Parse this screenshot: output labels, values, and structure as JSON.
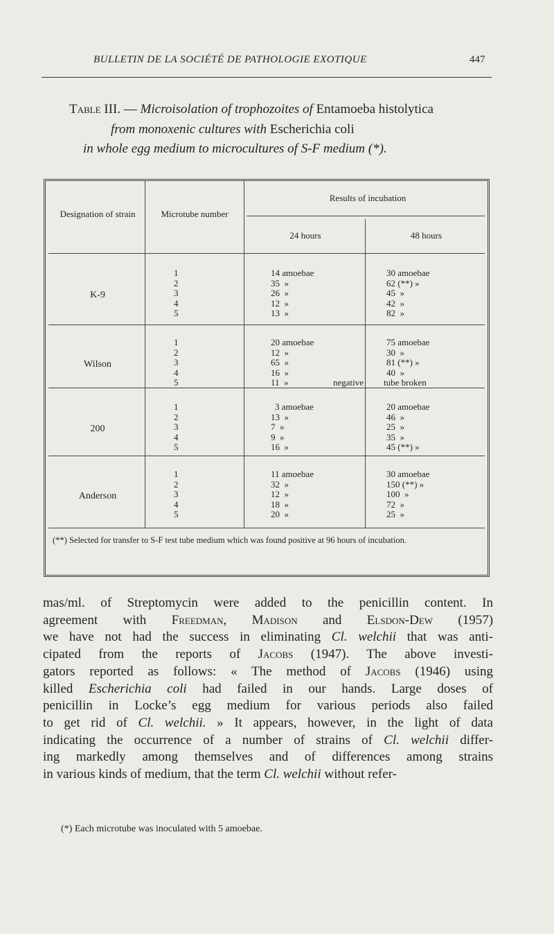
{
  "header": {
    "running_title": "BULLETIN DE LA SOCIÉTÉ DE PATHOLOGIE EXOTIQUE",
    "page_number": "447"
  },
  "table_title": [
    [
      {
        "t": "Table III.",
        "s": "sc"
      },
      {
        "t": " — ",
        "s": ""
      },
      {
        "t": "Microisolation of trophozoites of ",
        "s": "i"
      },
      {
        "t": "Entamoeba histolytica",
        "s": ""
      }
    ],
    [
      {
        "t": "from monoxenic cultures with ",
        "s": "i"
      },
      {
        "t": "Escherichia coli",
        "s": ""
      }
    ],
    [
      {
        "t": "in whole egg medium to microcultures of S-F medium (*).",
        "s": "i"
      }
    ]
  ],
  "table": {
    "col_strain": "Designation of strain",
    "col_microtube": "Microtube number",
    "col_results": "Results of incubation",
    "col_24": "24 hours",
    "col_48": "48 hours",
    "groups": [
      {
        "strain": "K-9",
        "tubes": [
          "1",
          "2",
          "3",
          "4",
          "5"
        ],
        "h24": [
          "14 amoebae",
          "35  »",
          "26  »",
          "12  »",
          "13  »"
        ],
        "h48": [
          "30 amoebae",
          "62 (**) »",
          "45  »",
          "42  »",
          "82  »"
        ]
      },
      {
        "strain": "Wilson",
        "tubes": [
          "1",
          "2",
          "3",
          "4",
          "5"
        ],
        "h24": [
          "20 amoebae",
          "12  »",
          "65  »",
          "16  »",
          "11  »"
        ],
        "h48": [
          "75 amoebae",
          "30  »",
          "81 (**) »",
          "40  »",
          "tube broken"
        ],
        "note": "negative"
      },
      {
        "strain": "200",
        "tubes": [
          "1",
          "2",
          "3",
          "4",
          "5"
        ],
        "h24": [
          "3 amoebae",
          "13  »",
          "7  »",
          "9  »",
          "16  »"
        ],
        "h48": [
          "20 amoebae",
          "46  »",
          "25  »",
          "35  »",
          "45 (**) »"
        ]
      },
      {
        "strain": "Anderson",
        "tubes": [
          "1",
          "2",
          "3",
          "4",
          "5"
        ],
        "h24": [
          "11 amoebae",
          "32  »",
          "12  »",
          "18  »",
          "20  »"
        ],
        "h48": [
          "30 amoebae",
          "150 (**) »",
          "100  »",
          "72  »",
          "25  »"
        ]
      }
    ],
    "footnote": "(**) Selected for transfer to S-F test tube medium which was found positive at 96 hours of incubation."
  },
  "body_lines": [
    [
      {
        "t": "mas/ml. of Streptomycin were added to the penicillin content. In",
        "s": ""
      }
    ],
    [
      {
        "t": "agreement with ",
        "s": ""
      },
      {
        "t": "Freedman",
        "s": "sc"
      },
      {
        "t": ", ",
        "s": ""
      },
      {
        "t": "Madison",
        "s": "sc"
      },
      {
        "t": " and ",
        "s": ""
      },
      {
        "t": "Elsdon-Dew",
        "s": "sc"
      },
      {
        "t": " (1957)",
        "s": ""
      }
    ],
    [
      {
        "t": "we have not had the success in eliminating ",
        "s": ""
      },
      {
        "t": "Cl. welchii",
        "s": "i"
      },
      {
        "t": " that was anti-",
        "s": ""
      }
    ],
    [
      {
        "t": "cipated from the reports of ",
        "s": ""
      },
      {
        "t": "Jacobs",
        "s": "sc"
      },
      {
        "t": " (1947). The above investi-",
        "s": ""
      }
    ],
    [
      {
        "t": "gators reported as follows: « The method of ",
        "s": ""
      },
      {
        "t": "Jacobs",
        "s": "sc"
      },
      {
        "t": " (1946) using",
        "s": ""
      }
    ],
    [
      {
        "t": "killed ",
        "s": ""
      },
      {
        "t": "Escherichia coli",
        "s": "i"
      },
      {
        "t": " had failed in our hands. Large doses of",
        "s": ""
      }
    ],
    [
      {
        "t": "penicillin in Locke’s egg medium for various periods also failed",
        "s": ""
      }
    ],
    [
      {
        "t": "to get rid of ",
        "s": ""
      },
      {
        "t": "Cl. welchii.",
        "s": "i"
      },
      {
        "t": " » It appears, however, in the light of data",
        "s": ""
      }
    ],
    [
      {
        "t": "indicating the occurrence of a number of strains of ",
        "s": ""
      },
      {
        "t": "Cl. welchii",
        "s": "i"
      },
      {
        "t": " differ-",
        "s": ""
      }
    ],
    [
      {
        "t": "ing markedly among themselves and of differences among strains",
        "s": ""
      }
    ],
    [
      {
        "t": "in various kinds of medium, that the term ",
        "s": ""
      },
      {
        "t": "Cl. welchii",
        "s": "i"
      },
      {
        "t": " without refer-",
        "s": ""
      }
    ]
  ],
  "footnote": "(*) Each microtube was inoculated with 5 amoebae."
}
